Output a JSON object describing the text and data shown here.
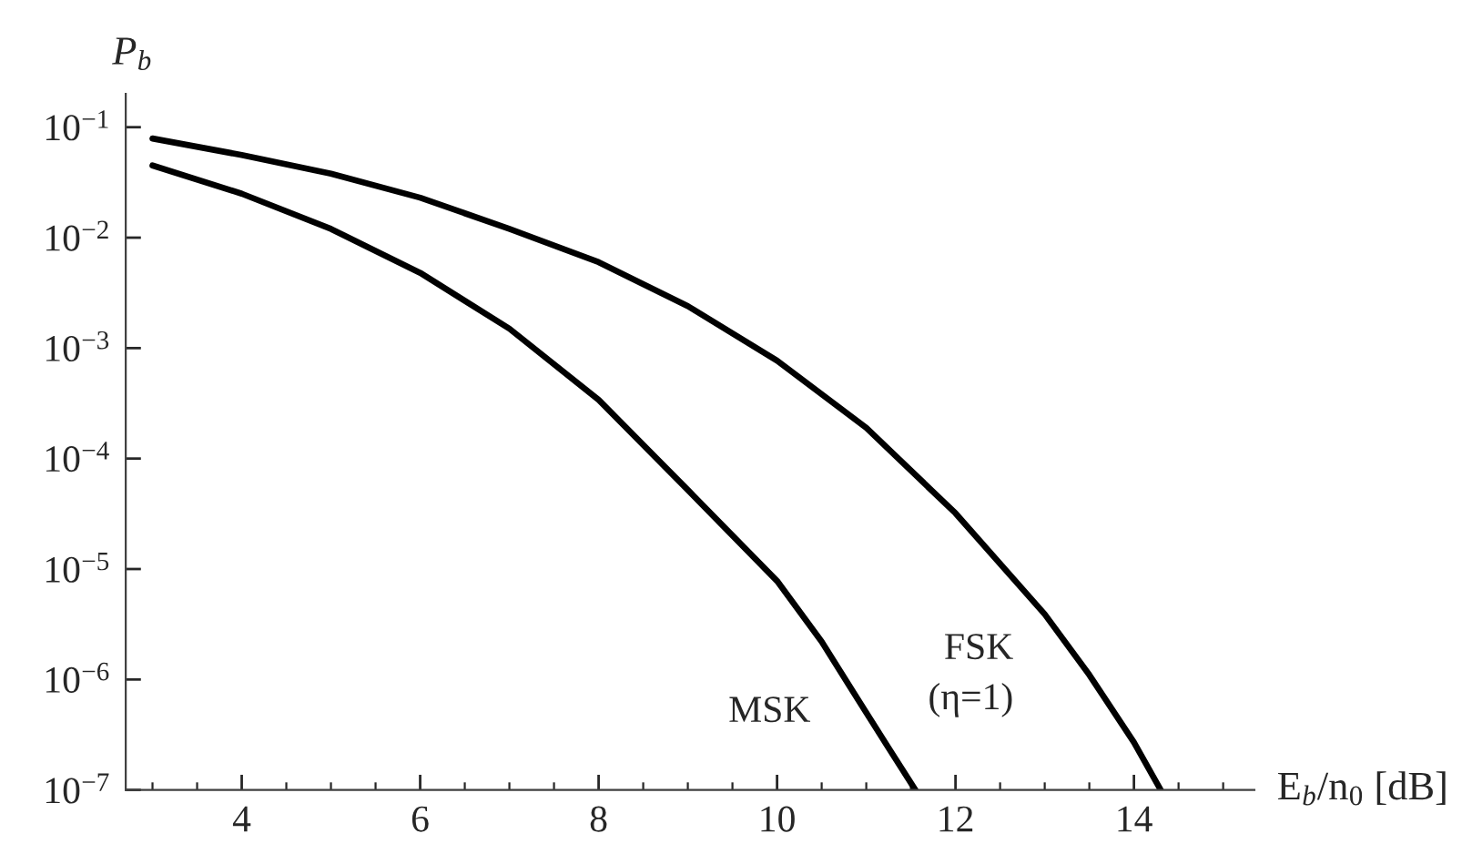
{
  "chart_data": {
    "type": "line",
    "ylabel": "P$_{b}$",
    "xlabel": "E$_{b}$/n$_{0}$ [dB]",
    "log": "y",
    "grid": false,
    "legend": false,
    "line_style": "solid",
    "marker": "none",
    "xlim": [
      2.7,
      15.35
    ],
    "xticks": [
      4,
      6,
      8,
      10,
      12,
      14
    ],
    "ylim": [
      1e-07,
      0.2
    ],
    "yticks": [
      {
        "value": 1e-07,
        "label": "10$^{−7}$"
      },
      {
        "value": 1e-06,
        "label": "10$^{−6}$"
      },
      {
        "value": 1e-05,
        "label": "10$^{−5}$"
      },
      {
        "value": 0.0001,
        "label": "10$^{−4}$"
      },
      {
        "value": 0.001,
        "label": "10$^{−3}$"
      },
      {
        "value": 0.01,
        "label": "10$^{−2}$"
      },
      {
        "value": 0.1,
        "label": "10$^{−1}$"
      }
    ],
    "series": [
      {
        "name": "MSK",
        "color": "#000000",
        "x": [
          3,
          4,
          5,
          6,
          7,
          8,
          9,
          10,
          10.5,
          11,
          11.25,
          11.55
        ],
        "values": [
          0.045,
          0.025,
          0.012,
          0.0048,
          0.0015,
          0.00034,
          5.2e-05,
          7.8e-06,
          2.2e-06,
          5e-07,
          2.4e-07,
          1e-07
        ]
      },
      {
        "name": "FSK\n(η=1)",
        "color": "#000000",
        "x": [
          3,
          4,
          5,
          6,
          7,
          8,
          9,
          10,
          11,
          12,
          13,
          13.5,
          14,
          14.3
        ],
        "values": [
          0.079,
          0.056,
          0.038,
          0.023,
          0.012,
          0.006,
          0.0024,
          0.00077,
          0.00019,
          3.2e-05,
          3.9e-06,
          1.1e-06,
          2.7e-07,
          1e-07
        ]
      }
    ]
  }
}
